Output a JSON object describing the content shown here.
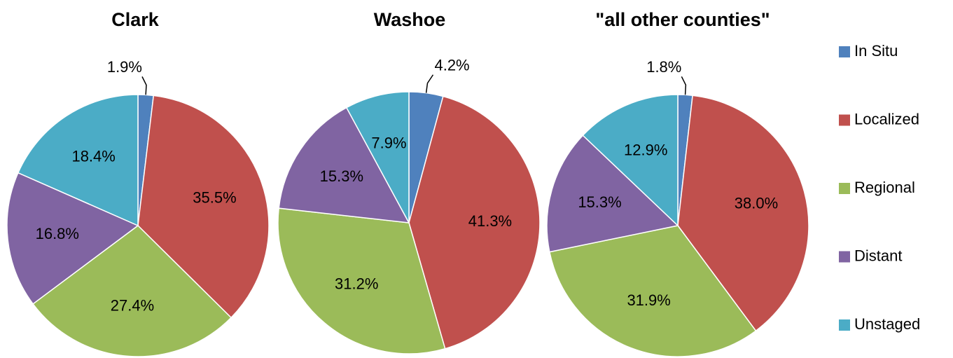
{
  "chart_data": [
    {
      "type": "pie",
      "title": "Clark",
      "categories": [
        "In Situ",
        "Localized",
        "Regional",
        "Distant",
        "Unstaged"
      ],
      "values": [
        1.9,
        35.5,
        27.4,
        16.8,
        18.4
      ],
      "value_labels": [
        "1.9%",
        "35.5%",
        "27.4%",
        "16.8%",
        "18.4%"
      ],
      "colors": [
        "#4f81bd",
        "#c0504d",
        "#9bbb59",
        "#8064a2",
        "#4bacc6"
      ]
    },
    {
      "type": "pie",
      "title": "Washoe",
      "categories": [
        "In Situ",
        "Localized",
        "Regional",
        "Distant",
        "Unstaged"
      ],
      "values": [
        4.2,
        41.3,
        31.2,
        15.3,
        7.9
      ],
      "value_labels": [
        "4.2%",
        "41.3%",
        "31.2%",
        "15.3%",
        "7.9%"
      ],
      "colors": [
        "#4f81bd",
        "#c0504d",
        "#9bbb59",
        "#8064a2",
        "#4bacc6"
      ]
    },
    {
      "type": "pie",
      "title": "\"all other counties\"",
      "categories": [
        "In Situ",
        "Localized",
        "Regional",
        "Distant",
        "Unstaged"
      ],
      "values": [
        1.8,
        38.0,
        31.9,
        15.3,
        12.9
      ],
      "value_labels": [
        "1.8%",
        "38.0%",
        "31.9%",
        "15.3%",
        "12.9%"
      ],
      "colors": [
        "#4f81bd",
        "#c0504d",
        "#9bbb59",
        "#8064a2",
        "#4bacc6"
      ]
    }
  ]
}
